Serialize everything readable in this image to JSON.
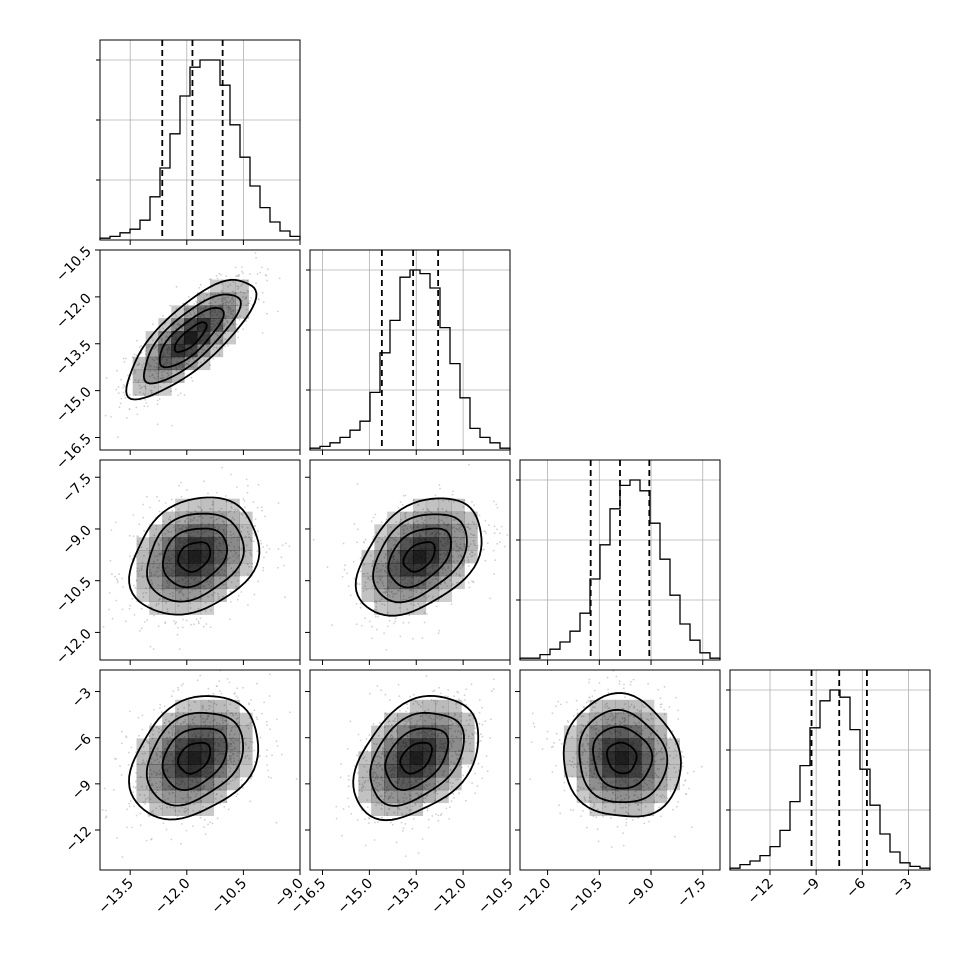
{
  "chart_data": {
    "type": "corner",
    "grid": true,
    "legend": "none",
    "title": "",
    "parameters": [
      {
        "range": [
          -14.3,
          -9.0
        ],
        "ticks": [
          -13.5,
          -12.0,
          -10.5,
          -9.0
        ],
        "tick_labels": [
          "−13.5",
          "−12.0",
          "−10.5",
          "−9.0"
        ],
        "quantiles": [
          -12.65,
          -11.85,
          -11.05
        ],
        "hist_bin_edges_start": -14.3,
        "hist_bin_width": 0.265,
        "hist_counts": [
          0.01,
          0.02,
          0.04,
          0.06,
          0.11,
          0.24,
          0.4,
          0.59,
          0.8,
          0.96,
          1.0,
          1.0,
          0.86,
          0.64,
          0.46,
          0.3,
          0.18,
          0.1,
          0.05,
          0.02
        ]
      },
      {
        "range": [
          -16.9,
          -10.5
        ],
        "ticks": [
          -16.5,
          -15.0,
          -13.5,
          -12.0,
          -10.5
        ],
        "tick_labels": [
          "−16.5",
          "−15.0",
          "−13.5",
          "−12.0",
          "−10.5"
        ],
        "quantiles": [
          -14.6,
          -13.6,
          -12.8
        ],
        "hist_bin_edges_start": -16.9,
        "hist_bin_width": 0.32,
        "hist_counts": [
          0.01,
          0.02,
          0.04,
          0.07,
          0.11,
          0.16,
          0.32,
          0.54,
          0.72,
          0.96,
          1.0,
          0.98,
          0.9,
          0.68,
          0.48,
          0.29,
          0.12,
          0.07,
          0.04,
          0.01
        ]
      },
      {
        "range": [
          -12.8,
          -7.0
        ],
        "ticks": [
          -12.0,
          -10.5,
          -9.0,
          -7.5
        ],
        "tick_labels": [
          "−12.0",
          "−10.5",
          "−9.0",
          "−7.5"
        ],
        "quantiles": [
          -10.75,
          -9.9,
          -9.05
        ],
        "hist_bin_edges_start": -12.8,
        "hist_bin_width": 0.29,
        "hist_counts": [
          0.01,
          0.01,
          0.03,
          0.06,
          0.1,
          0.16,
          0.26,
          0.45,
          0.64,
          0.84,
          0.97,
          1.0,
          0.94,
          0.76,
          0.56,
          0.36,
          0.2,
          0.11,
          0.04,
          0.01
        ]
      },
      {
        "range": [
          -14.6,
          -1.6
        ],
        "ticks": [
          -12,
          -9,
          -6,
          -3
        ],
        "tick_labels": [
          "−12",
          "−9",
          "−6",
          "−3"
        ],
        "quantiles": [
          -9.3,
          -7.5,
          -5.7
        ],
        "hist_bin_edges_start": -14.6,
        "hist_bin_width": 0.65,
        "hist_counts": [
          0.01,
          0.03,
          0.05,
          0.08,
          0.13,
          0.22,
          0.38,
          0.58,
          0.79,
          0.94,
          1.0,
          0.96,
          0.78,
          0.56,
          0.36,
          0.2,
          0.1,
          0.04,
          0.02,
          0.01
        ]
      }
    ],
    "pairs": [
      {
        "row": 1,
        "col": 0,
        "center": [
          -11.9,
          -13.3
        ],
        "sigma": [
          0.85,
          0.95
        ],
        "rho": 0.78
      },
      {
        "row": 2,
        "col": 0,
        "center": [
          -11.8,
          -9.8
        ],
        "sigma": [
          0.85,
          0.85
        ],
        "rho": 0.25
      },
      {
        "row": 2,
        "col": 1,
        "center": [
          -13.4,
          -9.8
        ],
        "sigma": [
          1.0,
          0.85
        ],
        "rho": 0.4
      },
      {
        "row": 3,
        "col": 0,
        "center": [
          -11.8,
          -7.3
        ],
        "sigma": [
          0.85,
          2.0
        ],
        "rho": 0.3
      },
      {
        "row": 3,
        "col": 1,
        "center": [
          -13.5,
          -7.3
        ],
        "sigma": [
          1.0,
          2.0
        ],
        "rho": 0.38
      },
      {
        "row": 3,
        "col": 2,
        "center": [
          -9.85,
          -7.3
        ],
        "sigma": [
          0.85,
          2.0
        ],
        "rho": -0.08
      }
    ],
    "contour_levels_sigma": [
      0.5,
      1.0,
      1.5,
      2.0
    ],
    "colors": {
      "line": "#000000",
      "points": "#bdbdbd",
      "grid": "#b0b0b0",
      "density": "#000000"
    }
  }
}
